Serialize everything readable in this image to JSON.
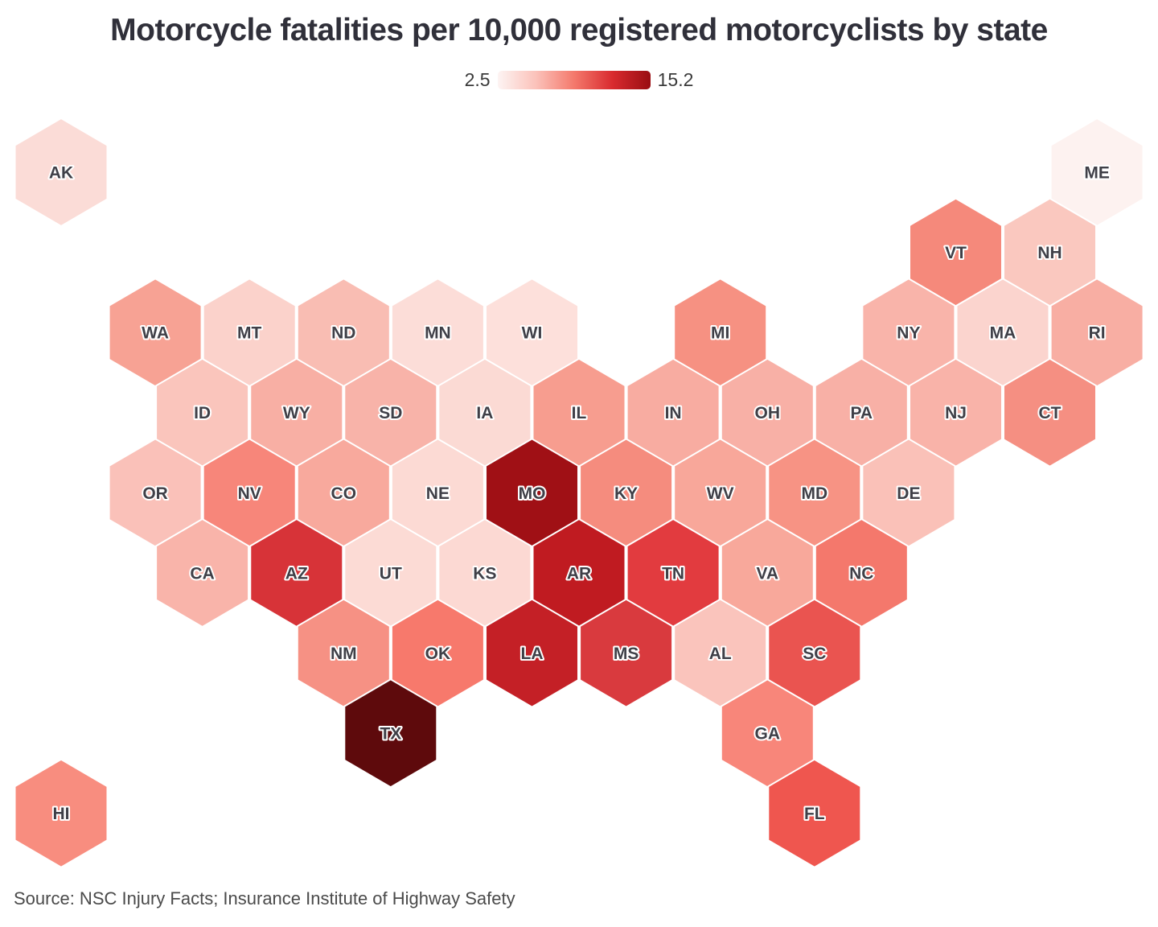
{
  "title": "Motorcycle fatalities per 10,000 registered motorcyclists by state",
  "legend": {
    "min_label": "2.5",
    "max_label": "15.2",
    "gradient": [
      "#FDF4F3",
      "#FBC2BA",
      "#F4796C",
      "#D92B2F",
      "#990D12"
    ]
  },
  "source": "Source: NSC Injury Facts; Insurance Institute of Highway Safety",
  "chart_data": {
    "type": "heatmap",
    "subtype": "hexagonal-tile-cartogram",
    "title": "Motorcycle fatalities per 10,000 registered motorcyclists by state",
    "colorbar_range": [
      2.5,
      15.2
    ],
    "legend_position": "top-center",
    "note": "values_estimated_from_color_shading",
    "states": [
      {
        "abbr": "AK",
        "row": 0,
        "col": 0,
        "color": "#FBDCD7",
        "value_estimate": 3.3
      },
      {
        "abbr": "ME",
        "row": 0,
        "col": 22,
        "color": "#FDF2F0",
        "value_estimate": 2.5
      },
      {
        "abbr": "VT",
        "row": 1,
        "col": 19,
        "color": "#F5897B",
        "value_estimate": 6.8
      },
      {
        "abbr": "NH",
        "row": 1,
        "col": 21,
        "color": "#FAC8BF",
        "value_estimate": 4.2
      },
      {
        "abbr": "WA",
        "row": 2,
        "col": 2,
        "color": "#F7A294",
        "value_estimate": 5.7
      },
      {
        "abbr": "MT",
        "row": 2,
        "col": 4,
        "color": "#FBD2CB",
        "value_estimate": 3.7
      },
      {
        "abbr": "ND",
        "row": 2,
        "col": 6,
        "color": "#F9BDB3",
        "value_estimate": 4.5
      },
      {
        "abbr": "MN",
        "row": 2,
        "col": 8,
        "color": "#FCDDD8",
        "value_estimate": 3.2
      },
      {
        "abbr": "WI",
        "row": 2,
        "col": 10,
        "color": "#FDE0DB",
        "value_estimate": 3.1
      },
      {
        "abbr": "MI",
        "row": 2,
        "col": 14,
        "color": "#F69182",
        "value_estimate": 6.4
      },
      {
        "abbr": "NY",
        "row": 2,
        "col": 18,
        "color": "#F9B4AA",
        "value_estimate": 5.0
      },
      {
        "abbr": "MA",
        "row": 2,
        "col": 20,
        "color": "#FBD4CE",
        "value_estimate": 3.8
      },
      {
        "abbr": "RI",
        "row": 2,
        "col": 22,
        "color": "#F8AEA3",
        "value_estimate": 5.1
      },
      {
        "abbr": "ID",
        "row": 3,
        "col": 3,
        "color": "#FAC5BC",
        "value_estimate": 4.3
      },
      {
        "abbr": "WY",
        "row": 3,
        "col": 5,
        "color": "#F8AFA4",
        "value_estimate": 5.1
      },
      {
        "abbr": "SD",
        "row": 3,
        "col": 7,
        "color": "#F8B3A9",
        "value_estimate": 4.9
      },
      {
        "abbr": "IA",
        "row": 3,
        "col": 9,
        "color": "#FBDAD4",
        "value_estimate": 3.4
      },
      {
        "abbr": "IL",
        "row": 3,
        "col": 11,
        "color": "#F79D8F",
        "value_estimate": 5.9
      },
      {
        "abbr": "IN",
        "row": 3,
        "col": 13,
        "color": "#F8ACA1",
        "value_estimate": 5.2
      },
      {
        "abbr": "OH",
        "row": 3,
        "col": 15,
        "color": "#F8B0A6",
        "value_estimate": 5.1
      },
      {
        "abbr": "PA",
        "row": 3,
        "col": 17,
        "color": "#F8B0A6",
        "value_estimate": 5.1
      },
      {
        "abbr": "NJ",
        "row": 3,
        "col": 19,
        "color": "#F9B3A9",
        "value_estimate": 5.0
      },
      {
        "abbr": "CT",
        "row": 3,
        "col": 21,
        "color": "#F58F82",
        "value_estimate": 6.5
      },
      {
        "abbr": "OR",
        "row": 4,
        "col": 2,
        "color": "#FAC1B9",
        "value_estimate": 4.4
      },
      {
        "abbr": "NV",
        "row": 4,
        "col": 4,
        "color": "#F7867A",
        "value_estimate": 6.9
      },
      {
        "abbr": "CO",
        "row": 4,
        "col": 6,
        "color": "#F8A99D",
        "value_estimate": 5.4
      },
      {
        "abbr": "NE",
        "row": 4,
        "col": 8,
        "color": "#FCDAD4",
        "value_estimate": 3.4
      },
      {
        "abbr": "MO",
        "row": 4,
        "col": 10,
        "color": "#A01015",
        "value_estimate": 12.5
      },
      {
        "abbr": "KY",
        "row": 4,
        "col": 12,
        "color": "#F58C7E",
        "value_estimate": 6.6
      },
      {
        "abbr": "WV",
        "row": 4,
        "col": 14,
        "color": "#F8A79A",
        "value_estimate": 5.5
      },
      {
        "abbr": "MD",
        "row": 4,
        "col": 16,
        "color": "#F79384",
        "value_estimate": 6.3
      },
      {
        "abbr": "DE",
        "row": 4,
        "col": 18,
        "color": "#FAC1B8",
        "value_estimate": 4.4
      },
      {
        "abbr": "CA",
        "row": 5,
        "col": 3,
        "color": "#F9B4AA",
        "value_estimate": 5.0
      },
      {
        "abbr": "AZ",
        "row": 5,
        "col": 5,
        "color": "#D73338",
        "value_estimate": 10.2
      },
      {
        "abbr": "UT",
        "row": 5,
        "col": 7,
        "color": "#FCDBD5",
        "value_estimate": 3.4
      },
      {
        "abbr": "KS",
        "row": 5,
        "col": 9,
        "color": "#FCD9D3",
        "value_estimate": 3.5
      },
      {
        "abbr": "AR",
        "row": 5,
        "col": 11,
        "color": "#C01B21",
        "value_estimate": 11.2
      },
      {
        "abbr": "TN",
        "row": 5,
        "col": 13,
        "color": "#E23B3F",
        "value_estimate": 9.6
      },
      {
        "abbr": "VA",
        "row": 5,
        "col": 15,
        "color": "#F8A89B",
        "value_estimate": 5.4
      },
      {
        "abbr": "NC",
        "row": 5,
        "col": 17,
        "color": "#F4786C",
        "value_estimate": 7.5
      },
      {
        "abbr": "NM",
        "row": 6,
        "col": 6,
        "color": "#F69184",
        "value_estimate": 6.2
      },
      {
        "abbr": "OK",
        "row": 6,
        "col": 8,
        "color": "#F7796C",
        "value_estimate": 7.3
      },
      {
        "abbr": "LA",
        "row": 6,
        "col": 10,
        "color": "#C42026",
        "value_estimate": 11.0
      },
      {
        "abbr": "MS",
        "row": 6,
        "col": 12,
        "color": "#D93A3E",
        "value_estimate": 9.9
      },
      {
        "abbr": "AL",
        "row": 6,
        "col": 14,
        "color": "#FAC4BC",
        "value_estimate": 4.3
      },
      {
        "abbr": "SC",
        "row": 6,
        "col": 16,
        "color": "#EA5450",
        "value_estimate": 8.8
      },
      {
        "abbr": "TX",
        "row": 7,
        "col": 7,
        "color": "#5E0A0C",
        "value_estimate": 15.2
      },
      {
        "abbr": "GA",
        "row": 7,
        "col": 15,
        "color": "#F8867A",
        "value_estimate": 6.9
      },
      {
        "abbr": "HI",
        "row": 8,
        "col": 0,
        "color": "#F88D7F",
        "value_estimate": 6.6
      },
      {
        "abbr": "FL",
        "row": 8,
        "col": 16,
        "color": "#EF564F",
        "value_estimate": 8.5
      }
    ]
  }
}
